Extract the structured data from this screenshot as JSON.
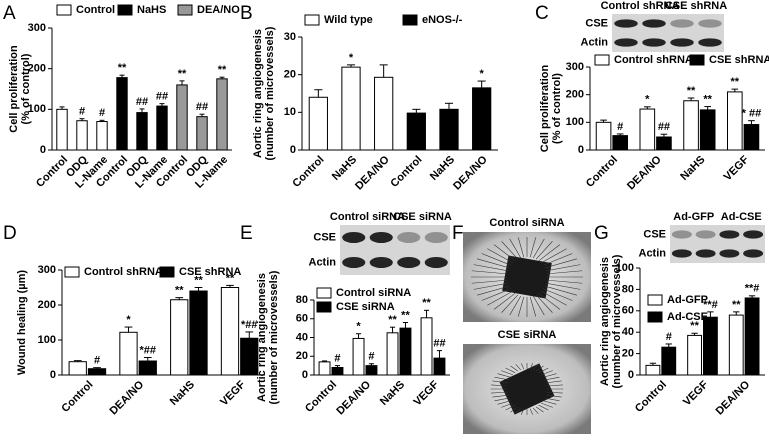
{
  "chart_data": [
    {
      "type": "bar",
      "panel": "A",
      "ylabel": [
        "Cell proliferation",
        "(% of control)"
      ],
      "categories": [
        "Control",
        "ODQ",
        "L-Name",
        "Control",
        "ODQ",
        "L-Name",
        "Control",
        "ODQ",
        "L-Name"
      ],
      "ylim": [
        0,
        300
      ],
      "yticks": [
        0,
        100,
        200,
        300
      ],
      "series": [
        {
          "name": "Control",
          "color": "#ffffff",
          "values": [
            100,
            72,
            70,
            null,
            null,
            null,
            null,
            null,
            null
          ],
          "errors": [
            6,
            5,
            3,
            null,
            null,
            null,
            null,
            null,
            null
          ],
          "annotations": [
            null,
            "#",
            "#",
            null,
            null,
            null,
            null,
            null,
            null
          ]
        },
        {
          "name": "NaHS",
          "color": "#000000",
          "values": [
            null,
            null,
            null,
            178,
            92,
            108,
            null,
            null,
            null
          ],
          "errors": [
            null,
            null,
            null,
            6,
            9,
            6,
            null,
            null,
            null
          ],
          "annotations": [
            null,
            null,
            null,
            "**",
            "##",
            "##",
            null,
            null,
            null
          ]
        },
        {
          "name": "DEA/NO",
          "color": "#999999",
          "values": [
            null,
            null,
            null,
            null,
            null,
            null,
            160,
            82,
            175
          ],
          "errors": [
            null,
            null,
            null,
            null,
            null,
            null,
            10,
            6,
            4
          ],
          "annotations": [
            null,
            null,
            null,
            null,
            null,
            null,
            "**",
            "##",
            "**"
          ]
        }
      ]
    },
    {
      "type": "bar",
      "panel": "B",
      "ylabel": [
        "Aortic ring angiogenesis",
        "(number of microvessels)"
      ],
      "categories": [
        "Control",
        "NaHS",
        "DEA/NO",
        "Control",
        "NaHS",
        "DEA/NO"
      ],
      "ylim": [
        0,
        30
      ],
      "yticks": [
        0,
        10,
        20,
        30
      ],
      "series": [
        {
          "name": "Wild type",
          "color": "#ffffff",
          "values": [
            14,
            22,
            19.3,
            null,
            null,
            null
          ],
          "errors": [
            2,
            0.6,
            3.3,
            null,
            null,
            null
          ],
          "annotations": [
            null,
            "*",
            null,
            null,
            null,
            null
          ]
        },
        {
          "name": "eNOS-/-",
          "color": "#000000",
          "values": [
            null,
            null,
            null,
            9.8,
            10.8,
            16.5
          ],
          "errors": [
            null,
            null,
            null,
            1,
            1.6,
            1.8
          ],
          "annotations": [
            null,
            null,
            null,
            null,
            null,
            "*"
          ]
        }
      ]
    },
    {
      "type": "bar",
      "panel": "C",
      "ylabel": [
        "Cell proliferation",
        "(% of control)"
      ],
      "categories": [
        "Control",
        "DEA/NO",
        "NaHS",
        "VEGF"
      ],
      "ylim": [
        0,
        300
      ],
      "yticks": [
        0,
        100,
        200,
        300
      ],
      "blot": {
        "columns": [
          "Control shRNA",
          "CSE shRNA"
        ],
        "rows": [
          "CSE",
          "Actin"
        ]
      },
      "series": [
        {
          "name": "Control shRNA",
          "color": "#ffffff",
          "values": [
            100,
            148,
            178,
            210
          ],
          "errors": [
            8,
            8,
            10,
            10
          ],
          "annotations": [
            null,
            "*",
            "**",
            "**"
          ]
        },
        {
          "name": "CSE shRNA",
          "color": "#000000",
          "values": [
            52,
            47,
            145,
            92
          ],
          "errors": [
            6,
            10,
            12,
            14
          ],
          "annotations": [
            "#",
            "##",
            "**",
            "* ##"
          ]
        }
      ]
    },
    {
      "type": "bar",
      "panel": "D",
      "ylabel": [
        "Wound healing (µm)"
      ],
      "categories": [
        "Control",
        "DEA/NO",
        "NaHS",
        "VEGF"
      ],
      "ylim": [
        0,
        300
      ],
      "yticks": [
        0,
        100,
        200,
        300
      ],
      "series": [
        {
          "name": "Control shRNA",
          "color": "#ffffff",
          "values": [
            38,
            122,
            215,
            250
          ],
          "errors": [
            3,
            15,
            6,
            6
          ],
          "annotations": [
            null,
            "*",
            "**",
            "**"
          ]
        },
        {
          "name": "CSE shRNA",
          "color": "#000000",
          "values": [
            18,
            40,
            240,
            105
          ],
          "errors": [
            3,
            10,
            10,
            18
          ],
          "annotations": [
            "#",
            "*##",
            "**",
            "*##"
          ]
        }
      ]
    },
    {
      "type": "bar",
      "panel": "E",
      "ylabel": [
        "Aortic ring angiogenesis",
        "(number of microvessels)"
      ],
      "categories": [
        "Control",
        "DEA/NO",
        "NaHS",
        "VEGF"
      ],
      "ylim": [
        0,
        80
      ],
      "yticks": [
        0,
        20,
        40,
        60,
        80
      ],
      "blot": {
        "columns": [
          "Control siRNA",
          "CSE siRNA"
        ],
        "rows": [
          "CSE",
          "Actin"
        ]
      },
      "series": [
        {
          "name": "Control siRNA",
          "color": "#ffffff",
          "values": [
            14,
            39,
            45,
            61
          ],
          "errors": [
            1,
            5,
            6,
            8
          ],
          "annotations": [
            null,
            "*",
            "**",
            "**"
          ]
        },
        {
          "name": "CSE siRNA",
          "color": "#000000",
          "values": [
            8,
            10,
            50,
            18
          ],
          "errors": [
            2,
            2,
            6,
            8
          ],
          "annotations": [
            "#",
            "#",
            "**",
            "##"
          ]
        }
      ]
    },
    {
      "type": "image",
      "panel": "F",
      "labels": [
        "Control siRNA",
        "CSE siRNA"
      ]
    },
    {
      "type": "bar",
      "panel": "G",
      "ylabel": [
        "Aortic ring angiogenesis",
        "(number of microvessels)"
      ],
      "categories": [
        "Control",
        "VEGF",
        "DEA/NO"
      ],
      "ylim": [
        0,
        100
      ],
      "yticks": [
        0,
        20,
        40,
        60,
        80,
        100
      ],
      "blot": {
        "columns": [
          "Ad-GFP",
          "Ad-CSE"
        ],
        "rows": [
          "CSE",
          "Actin"
        ]
      },
      "series": [
        {
          "name": "Ad-GFP",
          "color": "#ffffff",
          "values": [
            9,
            37,
            56
          ],
          "errors": [
            2,
            2,
            3
          ],
          "annotations": [
            null,
            "**",
            "**"
          ]
        },
        {
          "name": "Ad-CSE",
          "color": "#000000",
          "values": [
            26,
            54,
            72
          ],
          "errors": [
            3,
            5,
            2
          ],
          "annotations": [
            "#",
            "**#",
            "**#"
          ]
        }
      ]
    }
  ]
}
